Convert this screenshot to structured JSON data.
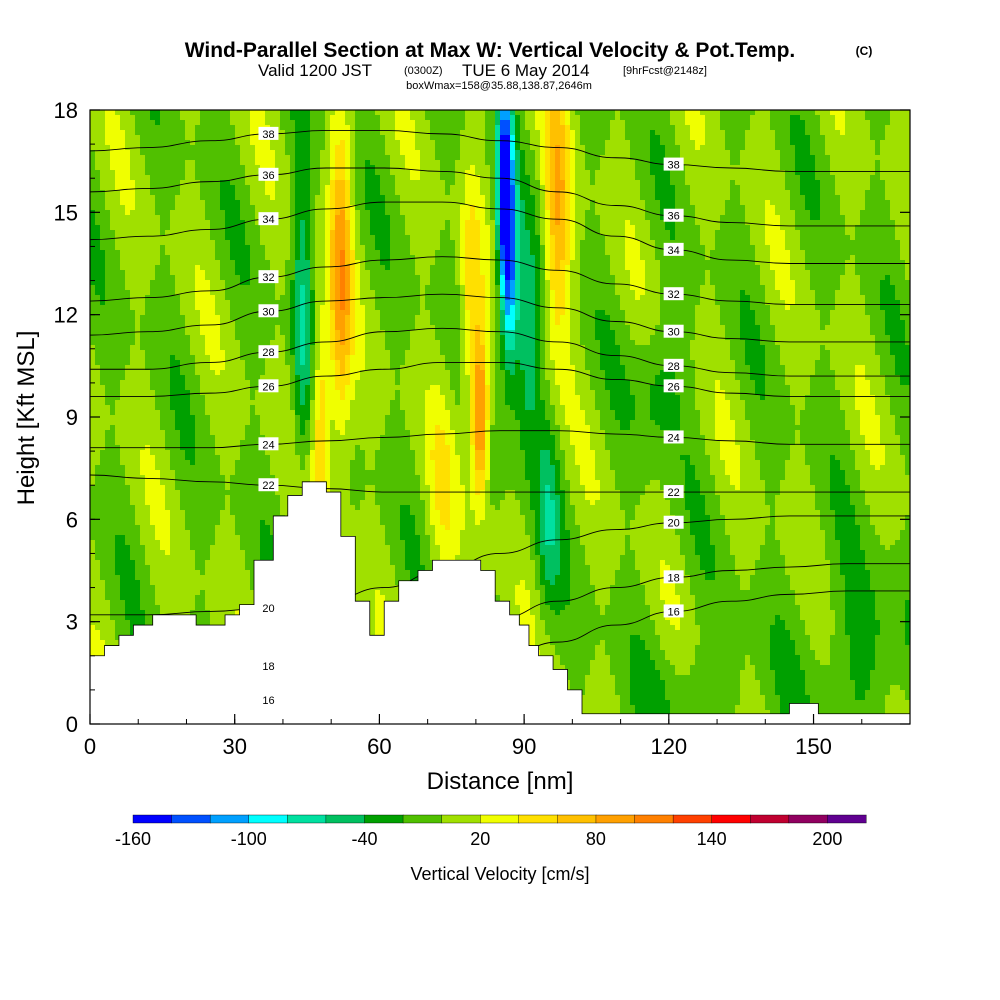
{
  "title": {
    "main": "Wind-Parallel Section at Max W: Vertical Velocity & Pot.Temp.",
    "copyright": "(C)",
    "valid_prefix": "Valid 1200 JST",
    "valid_utc": "(0300Z)",
    "valid_date": "TUE 6 May 2014",
    "forecast": "[9hrFcst@2148z]",
    "box": "boxWmax=158@35.88,138.87,2646m"
  },
  "chart_data": {
    "type": "heatmap",
    "xlabel": "Distance [nm]",
    "ylabel": "Height [Kft MSL]",
    "xlim": [
      0,
      170
    ],
    "ylim": [
      0,
      18
    ],
    "x_ticks": [
      "0",
      "30",
      "60",
      "90",
      "120",
      "150"
    ],
    "y_ticks": [
      "0",
      "3",
      "6",
      "9",
      "12",
      "15",
      "18"
    ],
    "colorbar": {
      "label": "Vertical Velocity [cm/s]",
      "tick_labels": [
        "-160",
        "-100",
        "-40",
        "20",
        "80",
        "140",
        "200"
      ],
      "tick_values": [
        -160,
        -100,
        -40,
        20,
        80,
        140,
        200
      ],
      "levels": [
        -160,
        -140,
        -120,
        -100,
        -80,
        -60,
        -40,
        -20,
        0,
        20,
        40,
        60,
        80,
        100,
        120,
        140,
        160,
        180,
        200
      ],
      "colors": [
        "#0000ff",
        "#0050ff",
        "#00a0ff",
        "#00ffff",
        "#00e0a0",
        "#00c060",
        "#00a000",
        "#50c000",
        "#a0e000",
        "#f0ff00",
        "#ffe000",
        "#ffc000",
        "#ffa000",
        "#ff8000",
        "#ff4000",
        "#ff0000",
        "#c00030",
        "#900060",
        "#600090"
      ]
    },
    "terrain_kft": [
      [
        0,
        2.0
      ],
      [
        3,
        2.0
      ],
      [
        3,
        2.3
      ],
      [
        6,
        2.3
      ],
      [
        6,
        2.6
      ],
      [
        9,
        2.6
      ],
      [
        9,
        2.9
      ],
      [
        13,
        2.9
      ],
      [
        13,
        3.2
      ],
      [
        22,
        3.2
      ],
      [
        22,
        2.9
      ],
      [
        28,
        2.9
      ],
      [
        28,
        3.2
      ],
      [
        31,
        3.2
      ],
      [
        31,
        3.5
      ],
      [
        34,
        3.5
      ],
      [
        34,
        4.8
      ],
      [
        38,
        4.8
      ],
      [
        38,
        6.1
      ],
      [
        41,
        6.1
      ],
      [
        41,
        6.7
      ],
      [
        44,
        6.7
      ],
      [
        44,
        7.1
      ],
      [
        49,
        7.1
      ],
      [
        49,
        6.8
      ],
      [
        52,
        6.8
      ],
      [
        52,
        5.5
      ],
      [
        55,
        5.5
      ],
      [
        55,
        3.6
      ],
      [
        58,
        3.6
      ],
      [
        58,
        2.6
      ],
      [
        61,
        2.6
      ],
      [
        61,
        3.6
      ],
      [
        64,
        3.6
      ],
      [
        64,
        4.2
      ],
      [
        68,
        4.2
      ],
      [
        68,
        4.5
      ],
      [
        71,
        4.5
      ],
      [
        71,
        4.8
      ],
      [
        81,
        4.8
      ],
      [
        81,
        4.5
      ],
      [
        84,
        4.5
      ],
      [
        84,
        3.6
      ],
      [
        87,
        3.6
      ],
      [
        87,
        3.2
      ],
      [
        89,
        3.2
      ],
      [
        89,
        2.9
      ],
      [
        91,
        2.9
      ],
      [
        91,
        2.3
      ],
      [
        93,
        2.3
      ],
      [
        93,
        2.0
      ],
      [
        96,
        2.0
      ],
      [
        96,
        1.6
      ],
      [
        99,
        1.6
      ],
      [
        99,
        1.0
      ],
      [
        102,
        1.0
      ],
      [
        102,
        0.3
      ],
      [
        145,
        0.3
      ],
      [
        145,
        0.6
      ],
      [
        151,
        0.6
      ],
      [
        151,
        0.3
      ],
      [
        170,
        0.3
      ]
    ],
    "theta_contours": [
      {
        "label": "16",
        "y": [
          0.6,
          0.6,
          0.7,
          0.7,
          0.9,
          1.1,
          1.4,
          1.9,
          2.4,
          2.9,
          3.3,
          3.6,
          3.8,
          3.9,
          3.9
        ]
      },
      {
        "label": "18",
        "y": [
          1.6,
          1.6,
          1.7,
          1.7,
          1.9,
          2.2,
          2.6,
          3.1,
          3.6,
          4.0,
          4.3,
          4.5,
          4.6,
          4.7,
          4.7
        ]
      },
      {
        "label": "20",
        "y": [
          3.2,
          3.2,
          3.3,
          3.4,
          3.6,
          4.0,
          4.5,
          5.0,
          5.4,
          5.7,
          5.9,
          6.0,
          6.1,
          6.1,
          6.1
        ]
      },
      {
        "label": "22",
        "y": [
          7.3,
          7.2,
          7.1,
          7.0,
          6.9,
          6.8,
          6.8,
          6.8,
          6.8,
          6.8,
          6.8,
          6.8,
          6.8,
          6.8,
          6.8
        ]
      },
      {
        "label": "24",
        "y": [
          8.1,
          8.1,
          8.1,
          8.2,
          8.3,
          8.4,
          8.5,
          8.6,
          8.6,
          8.5,
          8.4,
          8.3,
          8.2,
          8.2,
          8.2
        ]
      },
      {
        "label": "26",
        "y": [
          9.6,
          9.6,
          9.7,
          9.9,
          10.2,
          10.4,
          10.6,
          10.6,
          10.4,
          10.1,
          9.9,
          9.7,
          9.6,
          9.6,
          9.6
        ]
      },
      {
        "label": "28",
        "y": [
          10.4,
          10.4,
          10.6,
          10.9,
          11.2,
          11.5,
          11.6,
          11.5,
          11.2,
          10.8,
          10.5,
          10.3,
          10.2,
          10.2,
          10.2
        ]
      },
      {
        "label": "30",
        "y": [
          11.4,
          11.5,
          11.7,
          12.1,
          12.4,
          12.5,
          12.6,
          12.5,
          12.2,
          11.8,
          11.5,
          11.3,
          11.2,
          11.2,
          11.2
        ]
      },
      {
        "label": "32",
        "y": [
          12.4,
          12.5,
          12.7,
          13.1,
          13.4,
          13.6,
          13.7,
          13.6,
          13.3,
          12.9,
          12.6,
          12.4,
          12.3,
          12.3,
          12.3
        ]
      },
      {
        "label": "34",
        "y": [
          14.2,
          14.3,
          14.5,
          14.8,
          15.1,
          15.3,
          15.3,
          15.1,
          14.8,
          14.3,
          13.9,
          13.6,
          13.5,
          13.5,
          13.5
        ]
      },
      {
        "label": "36",
        "y": [
          15.6,
          15.7,
          15.9,
          16.1,
          16.3,
          16.3,
          16.2,
          16.0,
          15.6,
          15.2,
          14.9,
          14.7,
          14.6,
          14.6,
          14.6
        ]
      },
      {
        "label": "38",
        "y": [
          16.8,
          16.9,
          17.1,
          17.3,
          17.4,
          17.4,
          17.3,
          17.1,
          16.9,
          16.6,
          16.4,
          16.3,
          16.2,
          16.2,
          16.2
        ]
      }
    ],
    "theta_x": [
      0,
      12,
      25,
      37,
      49,
      61,
      73,
      85,
      97,
      109,
      121,
      133,
      145,
      157,
      170
    ]
  }
}
